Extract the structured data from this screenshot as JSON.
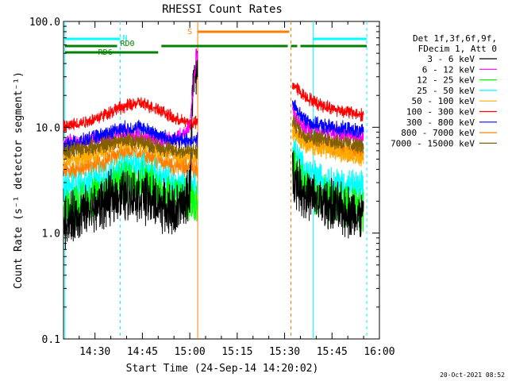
{
  "chart_data": {
    "type": "line",
    "title": "RHESSI Count Rates",
    "xlabel": "Start Time (24-Sep-14 14:20:02)",
    "ylabel": "Count Rate (s⁻¹ detector segment⁻¹)",
    "y_scale": "log",
    "ylim": [
      0.1,
      100.0
    ],
    "xlim": [
      "14:20:02",
      "16:00:00"
    ],
    "x_ticks": [
      "14:30",
      "14:45",
      "15:00",
      "15:15",
      "15:30",
      "15:45",
      "16:00"
    ],
    "y_ticks": [
      "0.1",
      "1.0",
      "10.0",
      "100.0"
    ],
    "grid": false,
    "legend_position": "right",
    "legend_header": [
      "Det 1f,3f,6f,9f,",
      "FDecim 1, Att 0"
    ],
    "gaps": [
      [
        "15:02:30",
        "15:32:30"
      ]
    ],
    "series": [
      {
        "name": "3 - 6 keV",
        "color": "#000000",
        "x": [
          "14:20",
          "14:30",
          "14:37",
          "14:44",
          "14:50",
          "14:55",
          "14:58",
          "15:00",
          "15:01",
          "15:02",
          "15:33",
          "15:36",
          "15:40",
          "15:45",
          "15:50",
          "15:55"
        ],
        "values": [
          1.3,
          1.7,
          2.3,
          2.3,
          1.9,
          1.6,
          1.8,
          2.5,
          25,
          35,
          3.5,
          2.4,
          2.0,
          1.8,
          1.6,
          1.4
        ]
      },
      {
        "name": "6 - 12 keV",
        "color": "#ff00ff",
        "x": [
          "14:20",
          "14:30",
          "14:37",
          "14:44",
          "14:50",
          "14:55",
          "14:58",
          "15:00",
          "15:01",
          "15:02",
          "15:33",
          "15:36",
          "15:40",
          "15:45",
          "15:50",
          "15:55"
        ],
        "values": [
          7.0,
          7.5,
          8.5,
          8.5,
          7.5,
          7.5,
          8.5,
          10,
          22,
          48,
          13,
          10,
          9.5,
          9.0,
          8.5,
          8.0
        ]
      },
      {
        "name": "12 - 25 keV",
        "color": "#00ff00",
        "x": [
          "14:20",
          "14:30",
          "14:37",
          "14:44",
          "14:50",
          "14:55",
          "15:00",
          "15:02",
          "15:33",
          "15:36",
          "15:40",
          "15:45",
          "15:50",
          "15:55"
        ],
        "values": [
          1.7,
          2.2,
          3.0,
          3.2,
          2.6,
          2.2,
          2.0,
          1.9,
          4.5,
          2.8,
          2.2,
          2.0,
          1.8,
          1.6
        ]
      },
      {
        "name": "25 - 50 keV",
        "color": "#00ffff",
        "x": [
          "14:20",
          "14:30",
          "14:37",
          "14:44",
          "14:50",
          "14:55",
          "15:00",
          "15:02",
          "15:33",
          "15:36",
          "15:40",
          "15:45",
          "15:50",
          "15:55"
        ],
        "values": [
          2.6,
          3.0,
          4.0,
          4.2,
          3.4,
          2.9,
          2.8,
          2.7,
          6.0,
          4.0,
          3.4,
          3.0,
          2.8,
          2.6
        ]
      },
      {
        "name": "50 - 100 keV",
        "color": "#ffaa00",
        "x": [
          "14:20",
          "14:30",
          "14:37",
          "14:44",
          "14:50",
          "14:55",
          "15:00",
          "15:02",
          "15:33",
          "15:36",
          "15:40",
          "15:45",
          "15:50",
          "15:55"
        ],
        "values": [
          5.0,
          5.5,
          7.0,
          7.0,
          6.0,
          5.5,
          5.5,
          5.3,
          9.0,
          7.0,
          6.5,
          6.0,
          5.5,
          5.2
        ]
      },
      {
        "name": "100 - 300 keV",
        "color": "#ff0000",
        "x": [
          "14:20",
          "14:30",
          "14:37",
          "14:44",
          "14:50",
          "14:55",
          "15:00",
          "15:02",
          "15:33",
          "15:36",
          "15:40",
          "15:45",
          "15:50",
          "15:55"
        ],
        "values": [
          10,
          12,
          15,
          17,
          15,
          12,
          11,
          11,
          25,
          20,
          17,
          15,
          14,
          13
        ]
      },
      {
        "name": "300 - 800 keV",
        "color": "#0000ff",
        "x": [
          "14:20",
          "14:30",
          "14:37",
          "14:44",
          "14:50",
          "14:55",
          "15:00",
          "15:02",
          "15:33",
          "15:36",
          "15:40",
          "15:45",
          "15:50",
          "15:55"
        ],
        "values": [
          6.5,
          8.0,
          9.5,
          10,
          8.5,
          7.5,
          7.5,
          7.5,
          16,
          12,
          10.5,
          10,
          9.5,
          9.0
        ]
      },
      {
        "name": "800 - 7000 keV",
        "color": "#ff8000",
        "x": [
          "14:20",
          "14:30",
          "14:37",
          "14:44",
          "14:50",
          "14:55",
          "15:00",
          "15:02",
          "15:33",
          "15:36",
          "15:40",
          "15:45",
          "15:50",
          "15:55"
        ],
        "values": [
          3.8,
          4.3,
          5.5,
          5.8,
          4.8,
          4.3,
          4.3,
          4.2,
          10,
          7.5,
          7.0,
          6.5,
          6.0,
          5.7
        ]
      },
      {
        "name": "7000 - 15000 keV",
        "color": "#806000",
        "x": [
          "14:20",
          "14:30",
          "14:37",
          "14:44",
          "14:50",
          "14:55",
          "15:00",
          "15:02",
          "15:33",
          "15:36",
          "15:40",
          "15:45",
          "15:50",
          "15:55"
        ],
        "values": [
          6.0,
          6.5,
          7.5,
          7.5,
          6.5,
          6.0,
          6.0,
          5.8,
          11,
          8.5,
          8.0,
          7.5,
          7.0,
          6.5
        ]
      }
    ],
    "vertical_lines": [
      {
        "time": "14:20:30",
        "color": "#00ffff",
        "style": "solid"
      },
      {
        "time": "14:38:00",
        "color": "#00ffff",
        "style": "dashed"
      },
      {
        "time": "15:02:30",
        "color": "#ff8000",
        "style": "solid"
      },
      {
        "time": "15:32:00",
        "color": "#ff8000",
        "style": "dashed"
      },
      {
        "time": "15:39:00",
        "color": "#00ffff",
        "style": "solid"
      },
      {
        "time": "15:56:00",
        "color": "#00ffff",
        "style": "dashed"
      }
    ],
    "flag_bars": [
      {
        "label": "N",
        "color": "#00ffff",
        "row": 1,
        "ranges": [
          [
            "14:20:30",
            "14:38:00"
          ],
          [
            "15:39:00",
            "15:56:00"
          ]
        ]
      },
      {
        "label": "S",
        "color": "#ff8000",
        "row": 0,
        "ranges": [
          [
            "15:02:30",
            "15:31:30"
          ]
        ]
      },
      {
        "label": "RD0",
        "color": "#008000",
        "row": 2,
        "ranges": [
          [
            "14:20:30",
            "14:37:00"
          ],
          [
            "14:51:00",
            "15:31:00"
          ],
          [
            "15:32:00",
            "15:34:00"
          ],
          [
            "15:35:00",
            "15:56:00"
          ]
        ]
      },
      {
        "label": "RD6",
        "color": "#008000",
        "row": 3,
        "ranges": [
          [
            "14:20:30",
            "14:50:00"
          ]
        ]
      }
    ]
  },
  "footer": {
    "date_stamp": "20-Oct-2021 08:52"
  }
}
